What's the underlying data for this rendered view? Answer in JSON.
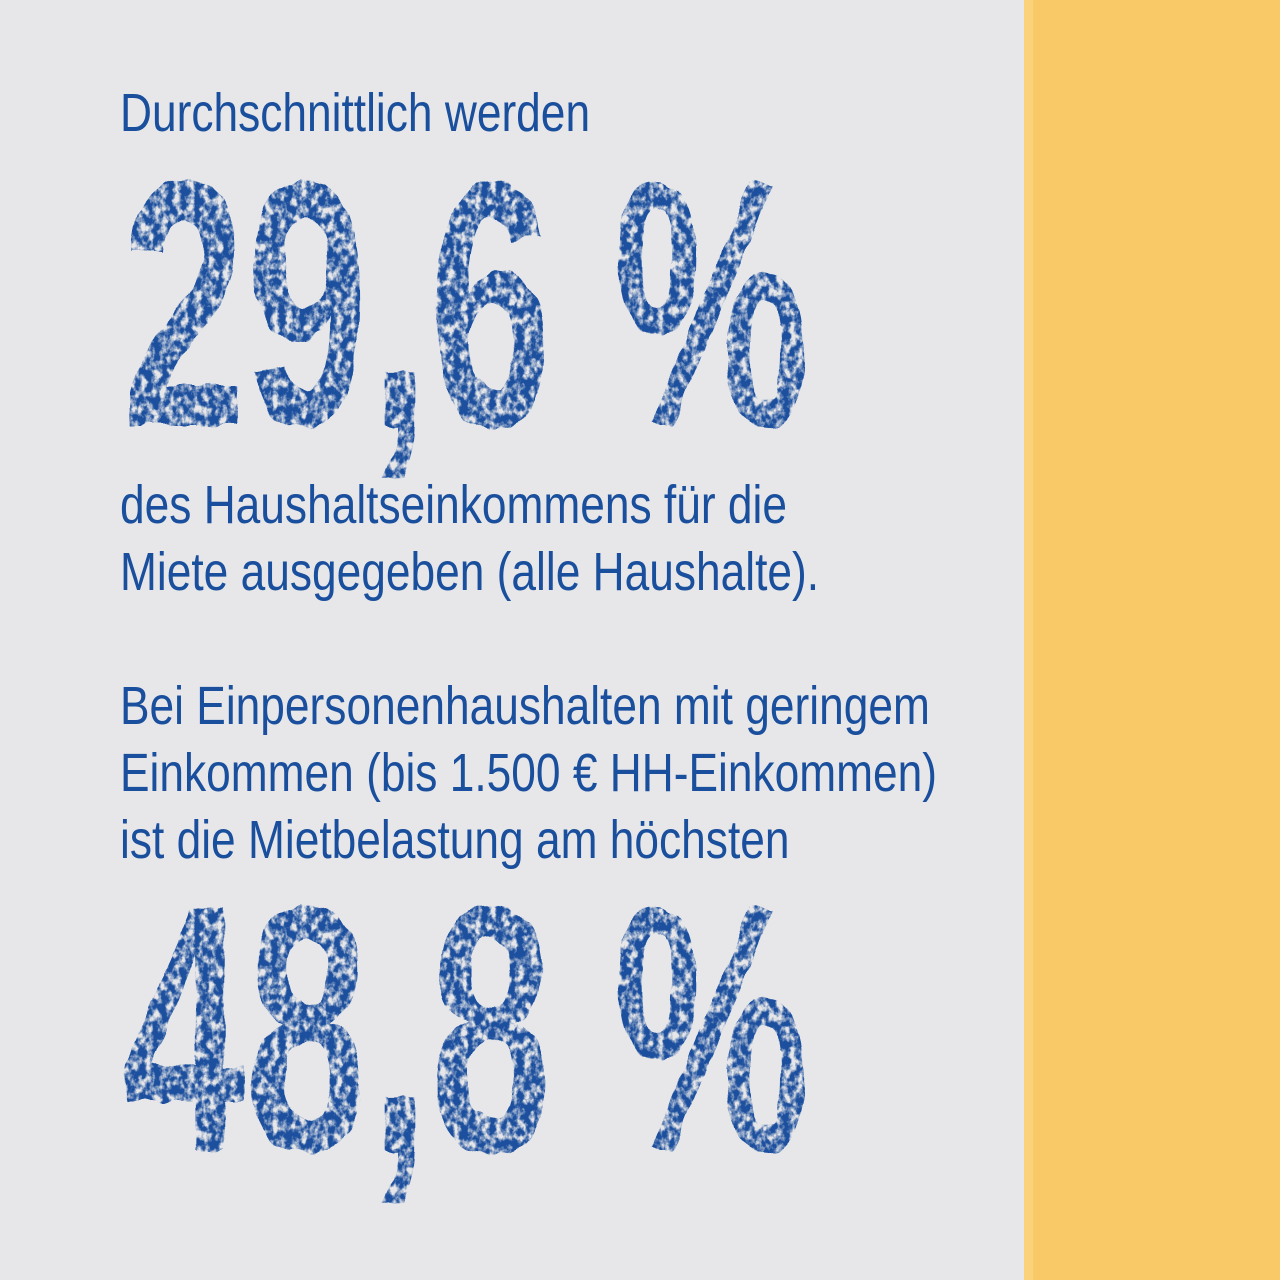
{
  "palette": {
    "background_gray": "#E7E7E9",
    "accent_band_yellow": "#F9C967",
    "accent_band_edge_yellow": "#FBD27A",
    "stamp_blue": "#1A4F9D"
  },
  "infographic": {
    "intro": "Durchschnittlich werden",
    "stat_1": {
      "value": "29,6 %",
      "description": "des Haushaltseinkommens für die\nMiete ausgegeben (alle Haushalte)."
    },
    "stat_2": {
      "lead": "Bei Einpersonenhaushalten mit geringem\nEinkommen (bis 1.500 € HH-Einkommen)\nist die Mietbelastung am höchsten",
      "value": "48,8 %"
    }
  }
}
